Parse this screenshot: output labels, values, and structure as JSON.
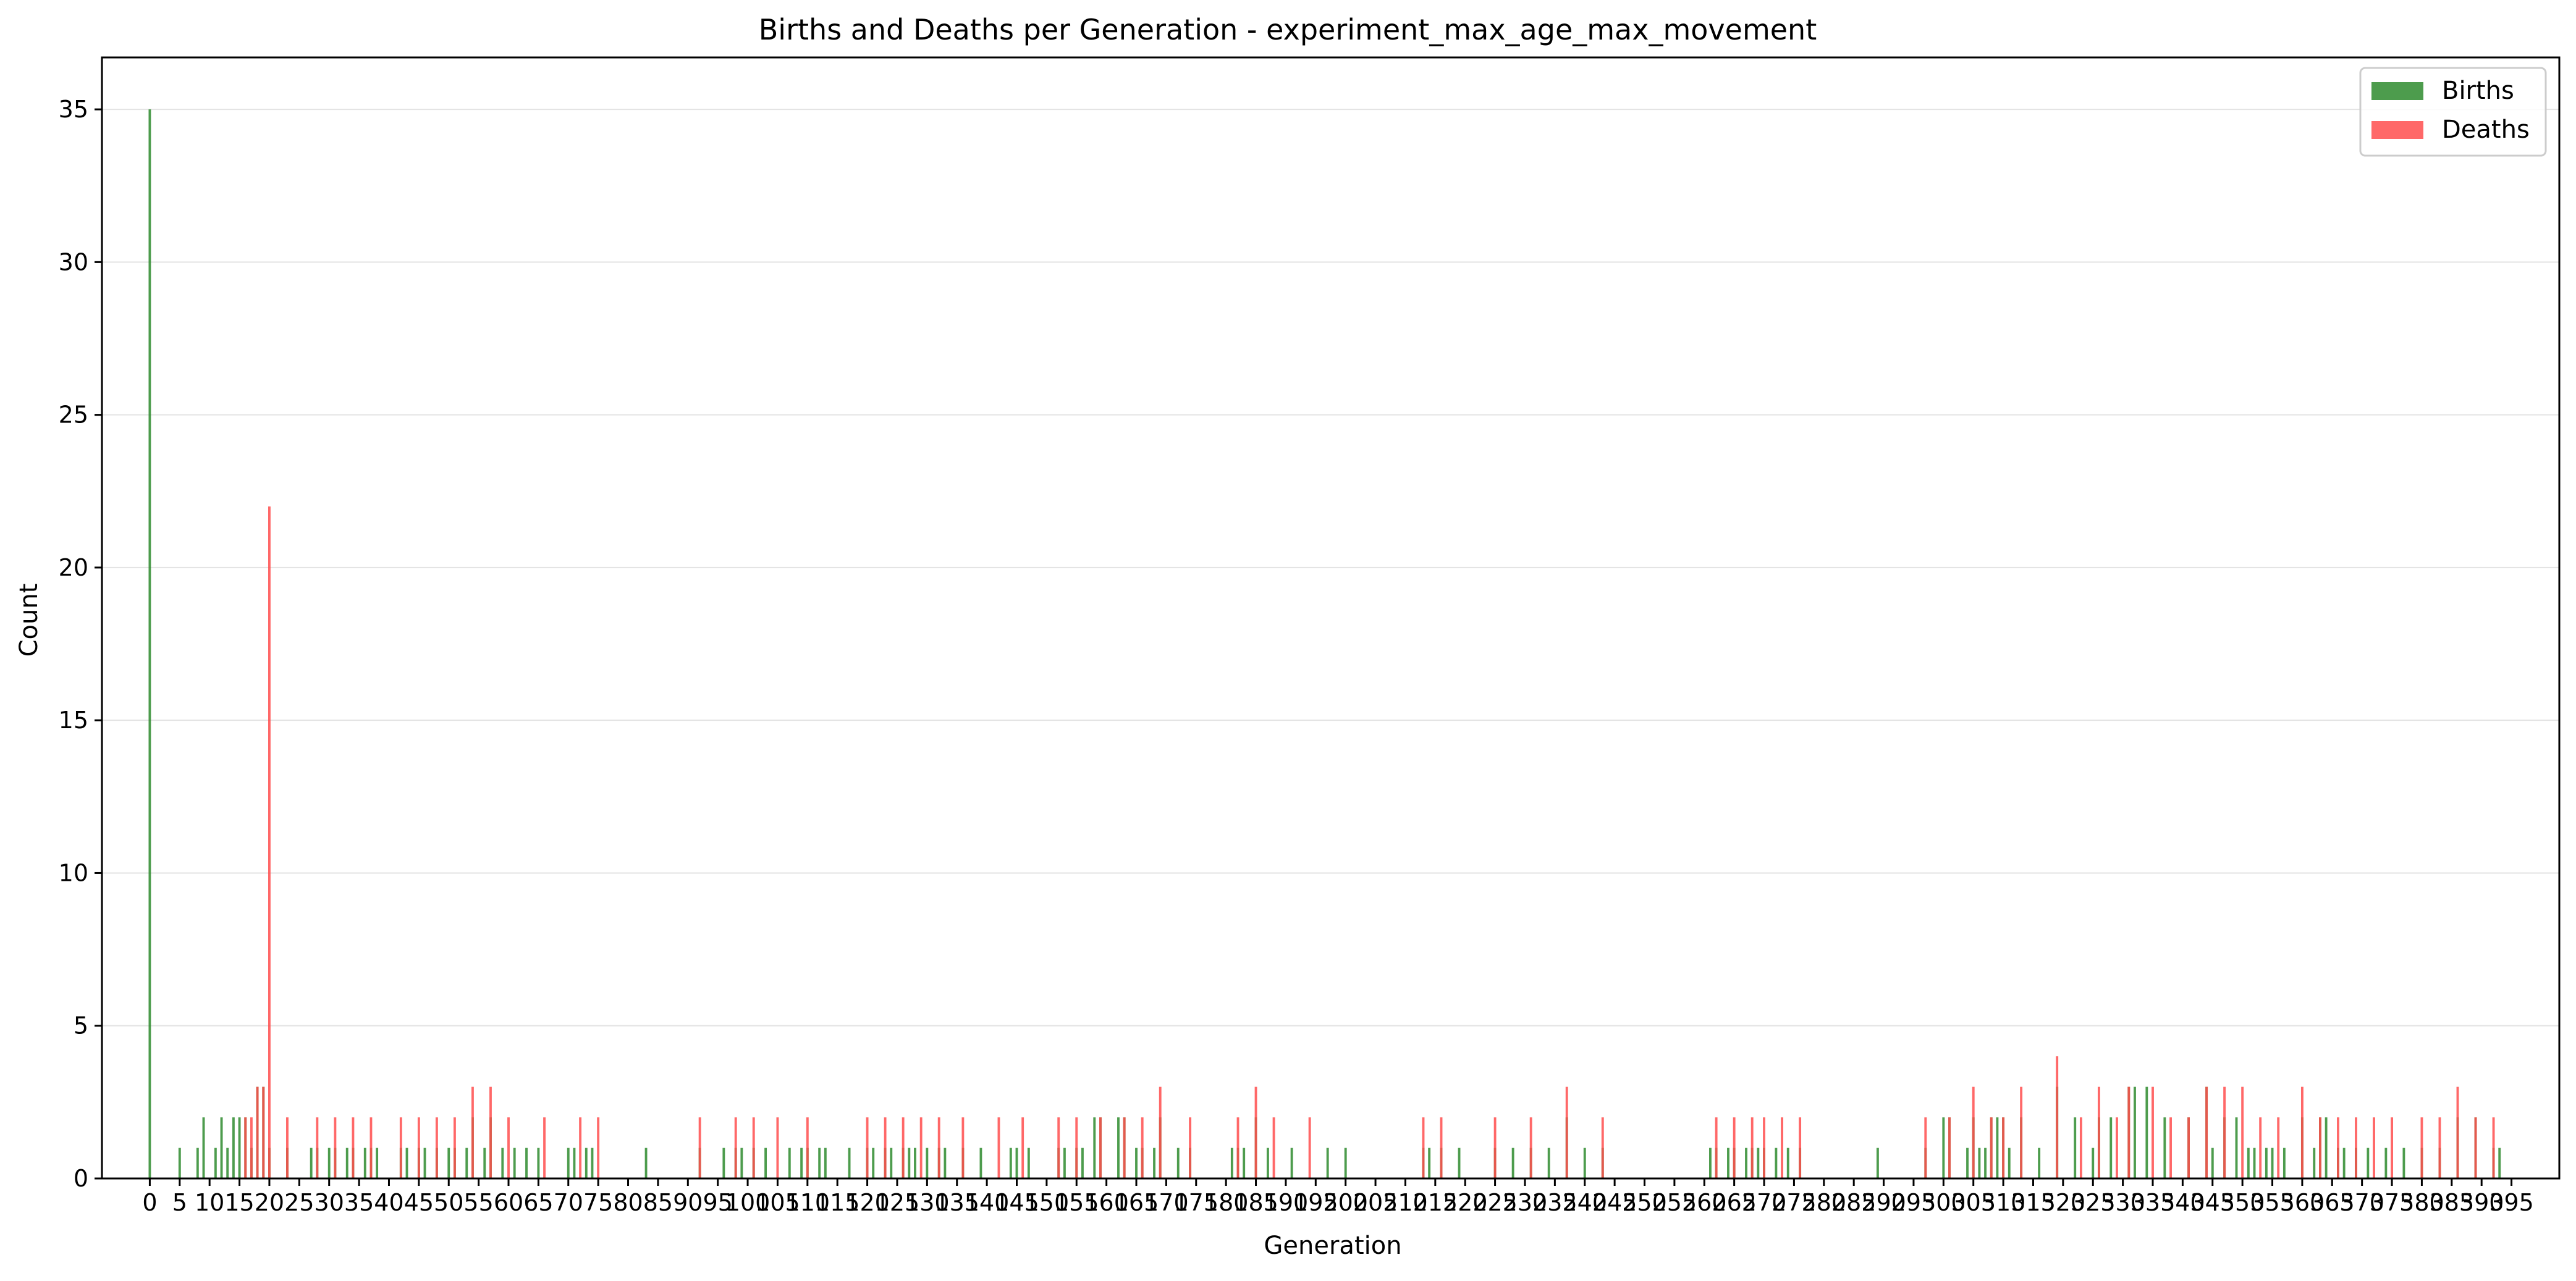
{
  "chart_data": {
    "type": "bar",
    "title": "Births and Deaths per Generation - experiment_max_age_max_movement",
    "xlabel": "Generation",
    "ylabel": "Count",
    "xlim": [
      -8,
      403
    ],
    "ylim": [
      0,
      36.7
    ],
    "yticks": [
      0,
      5,
      10,
      15,
      20,
      25,
      30,
      35
    ],
    "xticks": [
      0,
      5,
      10,
      15,
      20,
      25,
      30,
      35,
      40,
      45,
      50,
      55,
      60,
      65,
      70,
      75,
      80,
      85,
      90,
      95,
      100,
      105,
      110,
      115,
      120,
      125,
      130,
      135,
      140,
      145,
      150,
      155,
      160,
      165,
      170,
      175,
      180,
      185,
      190,
      195,
      200,
      205,
      210,
      215,
      220,
      225,
      230,
      235,
      240,
      245,
      250,
      255,
      260,
      265,
      270,
      275,
      280,
      285,
      290,
      295,
      300,
      305,
      310,
      315,
      320,
      325,
      330,
      335,
      340,
      345,
      350,
      355,
      360,
      365,
      370,
      375,
      380,
      385,
      390,
      395
    ],
    "grid": "y",
    "legend_position": "top-right",
    "series": [
      {
        "name": "Births",
        "color": "#2e8b2e",
        "points": [
          [
            0,
            35
          ],
          [
            5,
            1
          ],
          [
            8,
            1
          ],
          [
            9,
            2
          ],
          [
            11,
            1
          ],
          [
            12,
            2
          ],
          [
            13,
            1
          ],
          [
            14,
            2
          ],
          [
            15,
            2
          ],
          [
            16,
            2
          ],
          [
            17,
            1
          ],
          [
            18,
            3
          ],
          [
            19,
            3
          ],
          [
            20,
            1
          ],
          [
            23,
            1
          ],
          [
            27,
            1
          ],
          [
            28,
            1
          ],
          [
            30,
            1
          ],
          [
            31,
            1
          ],
          [
            33,
            1
          ],
          [
            34,
            1
          ],
          [
            36,
            1
          ],
          [
            37,
            1
          ],
          [
            38,
            1
          ],
          [
            42,
            1
          ],
          [
            43,
            1
          ],
          [
            45,
            1
          ],
          [
            46,
            1
          ],
          [
            48,
            1
          ],
          [
            50,
            1
          ],
          [
            51,
            1
          ],
          [
            53,
            1
          ],
          [
            54,
            2
          ],
          [
            56,
            1
          ],
          [
            57,
            2
          ],
          [
            59,
            1
          ],
          [
            61,
            1
          ],
          [
            63,
            1
          ],
          [
            65,
            1
          ],
          [
            70,
            1
          ],
          [
            71,
            1
          ],
          [
            73,
            1
          ],
          [
            74,
            1
          ],
          [
            83,
            1
          ],
          [
            92,
            1
          ],
          [
            96,
            1
          ],
          [
            98,
            1
          ],
          [
            99,
            1
          ],
          [
            101,
            1
          ],
          [
            103,
            1
          ],
          [
            107,
            1
          ],
          [
            109,
            1
          ],
          [
            110,
            1
          ],
          [
            112,
            1
          ],
          [
            113,
            1
          ],
          [
            117,
            1
          ],
          [
            120,
            1
          ],
          [
            121,
            1
          ],
          [
            123,
            1
          ],
          [
            124,
            1
          ],
          [
            126,
            1
          ],
          [
            127,
            1
          ],
          [
            128,
            1
          ],
          [
            130,
            1
          ],
          [
            132,
            1
          ],
          [
            133,
            1
          ],
          [
            136,
            1
          ],
          [
            139,
            1
          ],
          [
            144,
            1
          ],
          [
            145,
            1
          ],
          [
            147,
            1
          ],
          [
            152,
            1
          ],
          [
            153,
            1
          ],
          [
            155,
            1
          ],
          [
            156,
            1
          ],
          [
            158,
            2
          ],
          [
            159,
            2
          ],
          [
            162,
            2
          ],
          [
            163,
            2
          ],
          [
            165,
            1
          ],
          [
            166,
            1
          ],
          [
            168,
            1
          ],
          [
            169,
            2
          ],
          [
            172,
            1
          ],
          [
            174,
            1
          ],
          [
            181,
            1
          ],
          [
            182,
            1
          ],
          [
            183,
            1
          ],
          [
            185,
            2
          ],
          [
            187,
            1
          ],
          [
            191,
            1
          ],
          [
            197,
            1
          ],
          [
            200,
            1
          ],
          [
            213,
            1
          ],
          [
            214,
            1
          ],
          [
            216,
            1
          ],
          [
            219,
            1
          ],
          [
            225,
            1
          ],
          [
            228,
            1
          ],
          [
            231,
            1
          ],
          [
            234,
            1
          ],
          [
            237,
            2
          ],
          [
            240,
            1
          ],
          [
            243,
            1
          ],
          [
            261,
            1
          ],
          [
            262,
            1
          ],
          [
            264,
            1
          ],
          [
            265,
            1
          ],
          [
            267,
            1
          ],
          [
            268,
            1
          ],
          [
            269,
            1
          ],
          [
            270,
            1
          ],
          [
            272,
            1
          ],
          [
            274,
            1
          ],
          [
            276,
            1
          ],
          [
            289,
            1
          ],
          [
            297,
            1
          ],
          [
            300,
            2
          ],
          [
            301,
            2
          ],
          [
            304,
            1
          ],
          [
            305,
            2
          ],
          [
            306,
            1
          ],
          [
            307,
            1
          ],
          [
            308,
            2
          ],
          [
            309,
            2
          ],
          [
            310,
            2
          ],
          [
            311,
            1
          ],
          [
            313,
            2
          ],
          [
            316,
            1
          ],
          [
            319,
            3
          ],
          [
            322,
            2
          ],
          [
            325,
            1
          ],
          [
            326,
            2
          ],
          [
            328,
            2
          ],
          [
            331,
            3
          ],
          [
            332,
            3
          ],
          [
            334,
            3
          ],
          [
            337,
            2
          ],
          [
            341,
            2
          ],
          [
            344,
            3
          ],
          [
            345,
            1
          ],
          [
            347,
            2
          ],
          [
            349,
            2
          ],
          [
            351,
            1
          ],
          [
            352,
            1
          ],
          [
            354,
            1
          ],
          [
            355,
            1
          ],
          [
            357,
            1
          ],
          [
            360,
            2
          ],
          [
            362,
            1
          ],
          [
            363,
            2
          ],
          [
            364,
            2
          ],
          [
            366,
            1
          ],
          [
            367,
            1
          ],
          [
            369,
            1
          ],
          [
            371,
            1
          ],
          [
            374,
            1
          ],
          [
            377,
            1
          ],
          [
            380,
            1
          ],
          [
            383,
            1
          ],
          [
            386,
            2
          ],
          [
            389,
            2
          ],
          [
            392,
            1
          ],
          [
            393,
            1
          ]
        ]
      },
      {
        "name": "Deaths",
        "color": "#ff4d4d",
        "points": [
          [
            16,
            2
          ],
          [
            17,
            2
          ],
          [
            18,
            3
          ],
          [
            19,
            3
          ],
          [
            20,
            22
          ],
          [
            23,
            2
          ],
          [
            28,
            2
          ],
          [
            31,
            2
          ],
          [
            34,
            2
          ],
          [
            37,
            2
          ],
          [
            42,
            2
          ],
          [
            45,
            2
          ],
          [
            48,
            2
          ],
          [
            51,
            2
          ],
          [
            54,
            3
          ],
          [
            57,
            3
          ],
          [
            60,
            2
          ],
          [
            66,
            2
          ],
          [
            72,
            2
          ],
          [
            75,
            2
          ],
          [
            92,
            2
          ],
          [
            98,
            2
          ],
          [
            101,
            2
          ],
          [
            105,
            2
          ],
          [
            110,
            2
          ],
          [
            120,
            2
          ],
          [
            123,
            2
          ],
          [
            126,
            2
          ],
          [
            129,
            2
          ],
          [
            132,
            2
          ],
          [
            136,
            2
          ],
          [
            142,
            2
          ],
          [
            146,
            2
          ],
          [
            152,
            2
          ],
          [
            155,
            2
          ],
          [
            159,
            2
          ],
          [
            163,
            2
          ],
          [
            166,
            2
          ],
          [
            169,
            3
          ],
          [
            174,
            2
          ],
          [
            182,
            2
          ],
          [
            185,
            3
          ],
          [
            188,
            2
          ],
          [
            194,
            2
          ],
          [
            213,
            2
          ],
          [
            216,
            2
          ],
          [
            225,
            2
          ],
          [
            231,
            2
          ],
          [
            237,
            3
          ],
          [
            243,
            2
          ],
          [
            262,
            2
          ],
          [
            265,
            2
          ],
          [
            268,
            2
          ],
          [
            270,
            2
          ],
          [
            273,
            2
          ],
          [
            276,
            2
          ],
          [
            297,
            2
          ],
          [
            301,
            2
          ],
          [
            305,
            3
          ],
          [
            308,
            2
          ],
          [
            310,
            2
          ],
          [
            313,
            3
          ],
          [
            319,
            4
          ],
          [
            323,
            2
          ],
          [
            326,
            3
          ],
          [
            329,
            2
          ],
          [
            331,
            3
          ],
          [
            335,
            3
          ],
          [
            338,
            2
          ],
          [
            341,
            2
          ],
          [
            344,
            3
          ],
          [
            347,
            3
          ],
          [
            350,
            3
          ],
          [
            353,
            2
          ],
          [
            356,
            2
          ],
          [
            360,
            3
          ],
          [
            363,
            2
          ],
          [
            366,
            2
          ],
          [
            369,
            2
          ],
          [
            372,
            2
          ],
          [
            375,
            2
          ],
          [
            380,
            2
          ],
          [
            383,
            2
          ],
          [
            386,
            3
          ],
          [
            389,
            2
          ],
          [
            392,
            2
          ]
        ]
      }
    ]
  }
}
